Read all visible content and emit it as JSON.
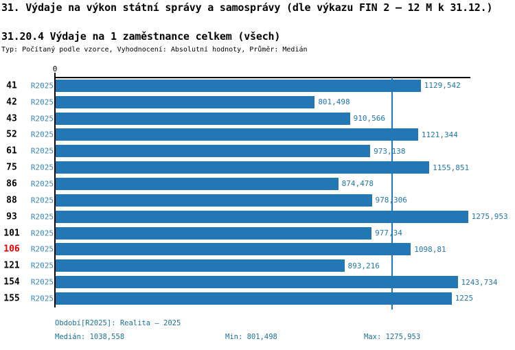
{
  "header": {
    "title": "31. Výdaje na výkon státní správy a samosprávy (dle výkazu FIN 2 – 12 M k 31.12.)",
    "subtitle": "31.20.4 Výdaje na 1 zaměstnance celkem (všech)",
    "meta": "Typ: Počítaný podle vzorce, Vyhodnocení: Absolutní hodnoty, Průměr: Medián"
  },
  "chart_data": {
    "type": "bar",
    "orientation": "horizontal",
    "title": "31.20.4 Výdaje na 1 zaměstnance celkem (všech)",
    "axis_zero_label": "0",
    "xlim": [
      0,
      1283
    ],
    "grid": false,
    "period_label": "R2025",
    "categories": [
      "41",
      "42",
      "43",
      "52",
      "61",
      "75",
      "86",
      "88",
      "93",
      "101",
      "106",
      "121",
      "154",
      "155"
    ],
    "values": [
      1129.542,
      801.498,
      910.566,
      1121.344,
      973.138,
      1155.851,
      874.478,
      978.306,
      1275.953,
      977.34,
      1098.81,
      893.216,
      1243.734,
      1225
    ],
    "value_labels": [
      "1129,542",
      "801,498",
      "910,566",
      "1121,344",
      "973,138",
      "1155,851",
      "874,478",
      "978,306",
      "1275,953",
      "977,34",
      "1098,81",
      "893,216",
      "1243,734",
      "1225"
    ],
    "highlighted_index": 10,
    "highlighted_category": "106",
    "median": 1038.558,
    "min": 801.498,
    "max": 1275.953,
    "colors": {
      "bar": "#2277b4",
      "label": "#3585c5",
      "value": "#2277b4",
      "axis": "#000000",
      "median": "#2277b4",
      "highlight": "#e00000",
      "footer": "#1b729f"
    }
  },
  "footer": {
    "period": "Období[R2025]: Realita – 2025",
    "median": "Medián: 1038,558",
    "min": "Min: 801,498",
    "max": "Max: 1275,953"
  }
}
